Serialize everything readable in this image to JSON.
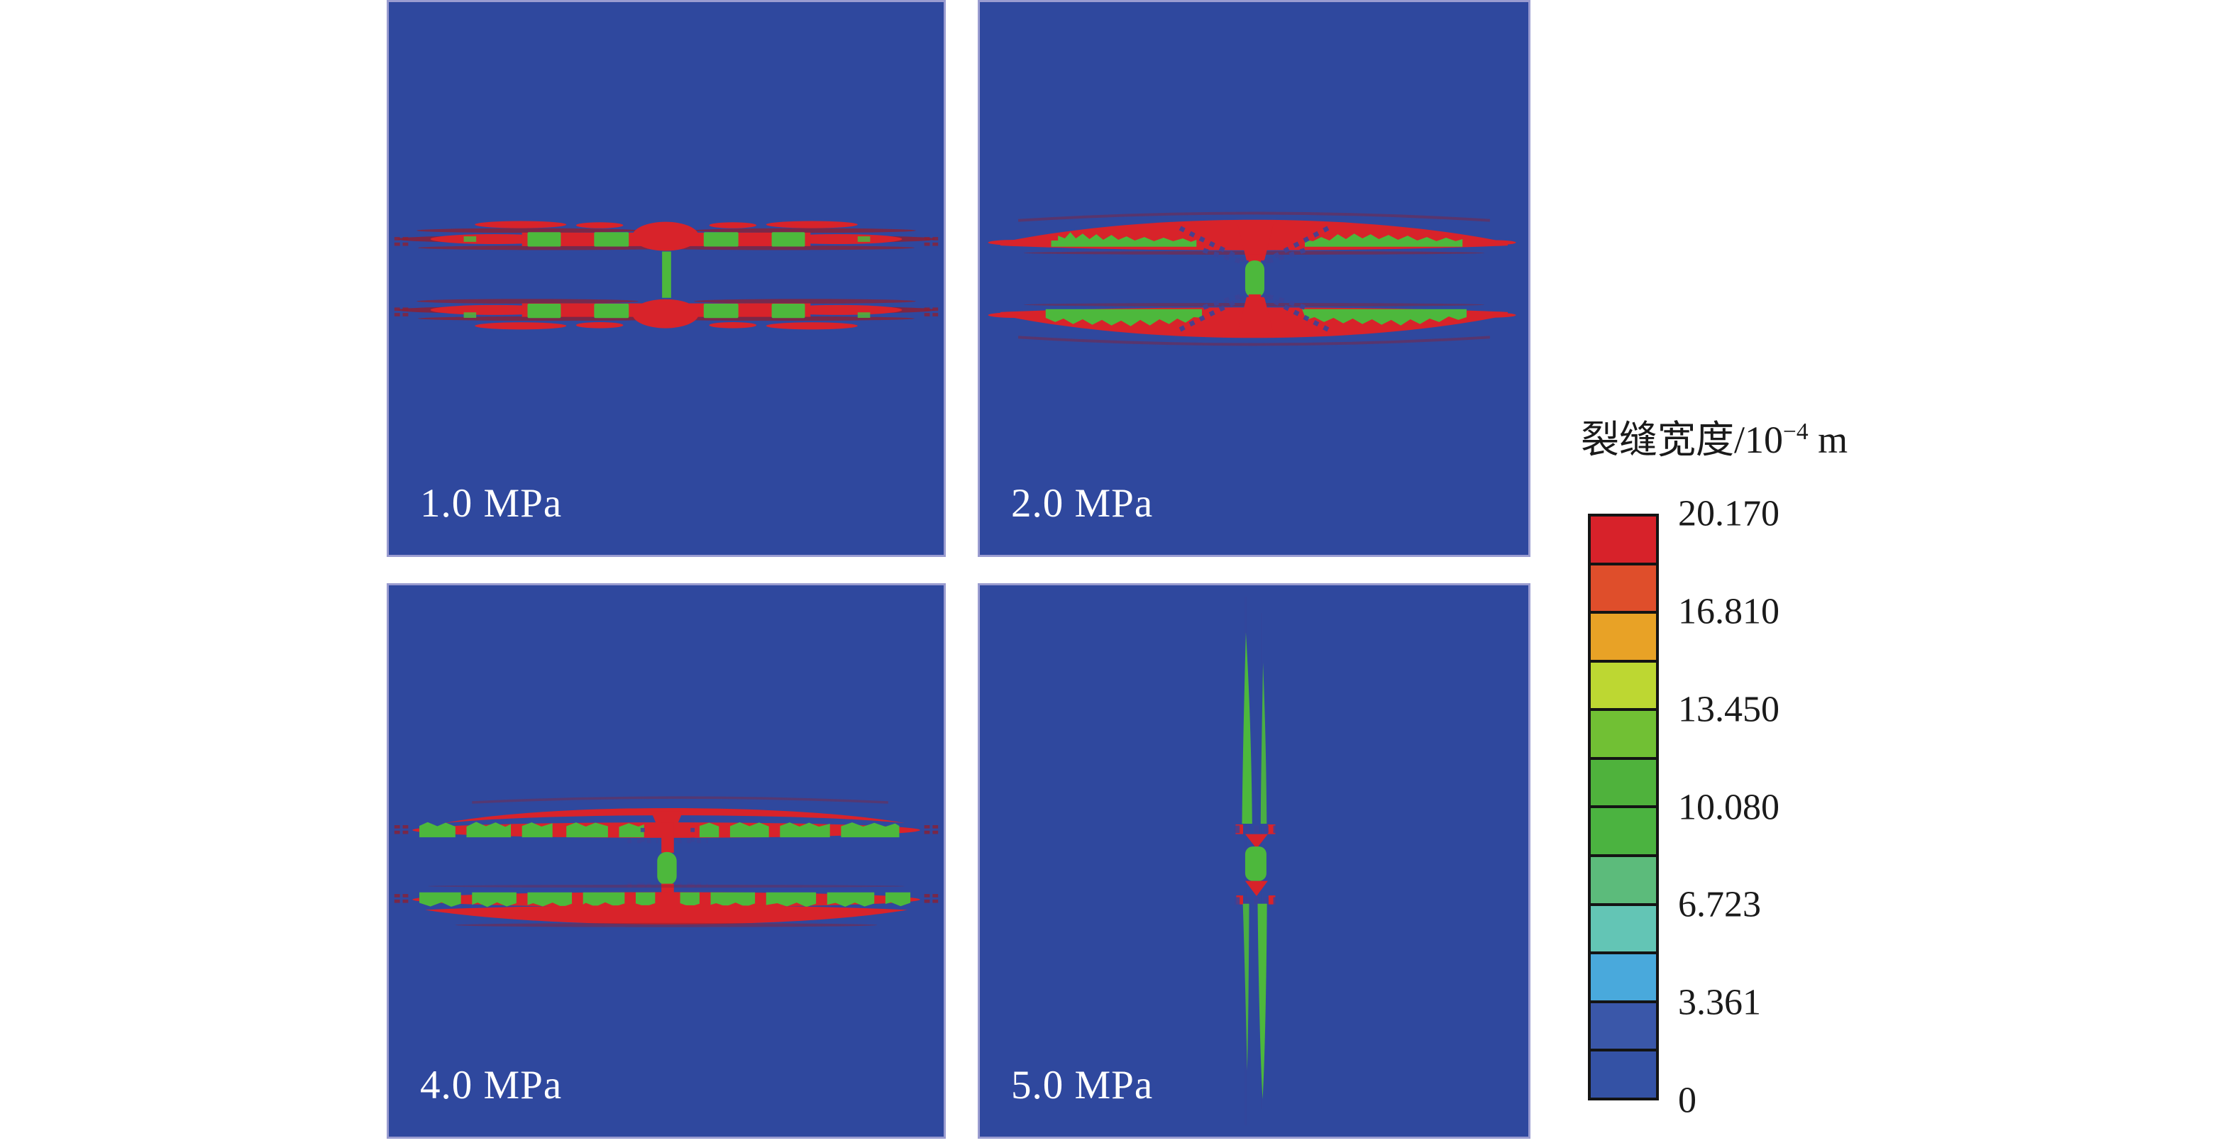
{
  "figure": {
    "panels": [
      {
        "label": "1.0 MPa"
      },
      {
        "label": "2.0 MPa"
      },
      {
        "label": "4.0 MPa"
      },
      {
        "label": "5.0 MPa"
      }
    ]
  },
  "legend": {
    "title_base": "裂缝宽度/10",
    "title_sup": "−4",
    "title_unit": " m",
    "title_full": "裂缝宽度/10⁻⁴ m",
    "ticks": [
      "20.170",
      "16.810",
      "13.450",
      "10.080",
      "6.723",
      "3.361",
      "0"
    ],
    "segments": [
      "#d7222a",
      "#df4e2b",
      "#e8a226",
      "#bdd732",
      "#71c034",
      "#4fb23c",
      "#4bb340",
      "#5cbb7b",
      "#63c5b5",
      "#49a9dc",
      "#3a57a9",
      "#3452a5"
    ]
  },
  "colors": {
    "panel_bg": "#2f489e",
    "panel_edge": "#9a9cd0",
    "crack_red": "#d8232a",
    "crack_green": "#4db83c",
    "streak_maroon": "#8c2033",
    "dot_line": "#3b4398",
    "label_text": "#ffffff",
    "tick_text": "#1a1a1a"
  },
  "chart_data": {
    "type": "heatmap",
    "title": "",
    "colorbar_title": "裂缝宽度/10⁻⁴ m",
    "colorbar_tick_values": [
      20.17,
      16.81,
      13.45,
      10.08,
      6.723,
      3.361,
      0
    ],
    "colorbar_segment_count": 12,
    "colorbar_segment_colors": [
      "#d7222a",
      "#df4e2b",
      "#e8a226",
      "#bdd732",
      "#71c034",
      "#4fb23c",
      "#4bb340",
      "#5cbb7b",
      "#63c5b5",
      "#49a9dc",
      "#3a57a9",
      "#3452a5"
    ],
    "value_range": [
      0,
      20.17
    ],
    "panels": [
      {
        "pressure": "1.0 MPa",
        "pattern": "two thin horizontal fracture bands with discrete green high-width patches and a short central vertical green connector"
      },
      {
        "pressure": "2.0 MPa",
        "pattern": "two thick horizontal red fracture bands with jagged green strips on inner edges, joined through a central vertical green conduit"
      },
      {
        "pressure": "4.0 MPa",
        "pattern": "two wide horizontal fracture bands spanning the panel, green patches distributed along bands, large red bulge below lower band, central green conduit"
      },
      {
        "pressure": "5.0 MPa",
        "pattern": "single vertical fracture: tapered green spindles above and below a central green conduit capped by red triangles"
      }
    ]
  }
}
